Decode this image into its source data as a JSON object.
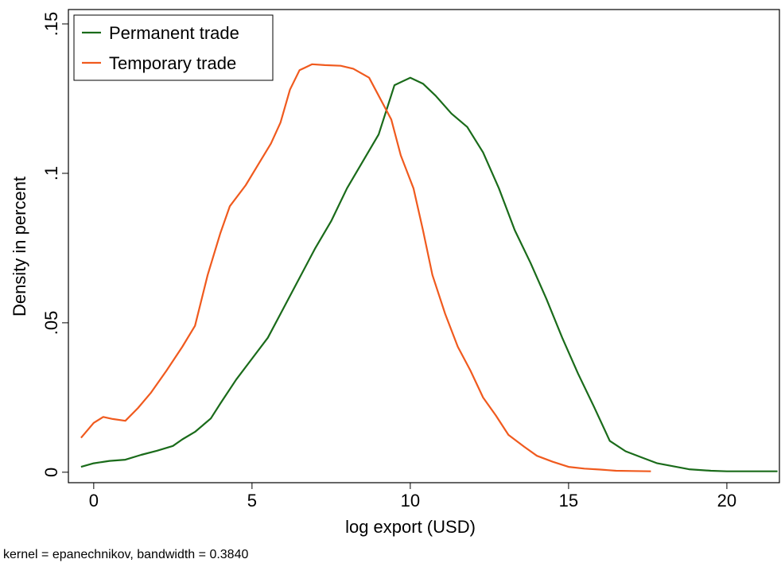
{
  "chart_data": {
    "type": "line",
    "x_label": "log export (USD)",
    "y_label": "Density in percent",
    "note": "kernel = epanechnikov, bandwidth = 0.3840",
    "xlim": [
      -0.8,
      21.66
    ],
    "ylim": [
      -0.0035,
      0.1548
    ],
    "xticks": [
      0,
      5,
      10,
      15,
      20
    ],
    "yticks": [
      {
        "value": 0,
        "label": "0"
      },
      {
        "value": 0.05,
        "label": ".05"
      },
      {
        "value": 0.1,
        "label": ".1"
      },
      {
        "value": 0.15,
        "label": ".15"
      }
    ],
    "legend": "top-left",
    "series": [
      {
        "name": "Permanent trade",
        "color": "#1a6b1a",
        "x": [
          -0.4,
          0,
          0.5,
          1,
          1.5,
          2,
          2.5,
          2.8,
          3.2,
          3.7,
          4.0,
          4.5,
          5,
          5.5,
          6,
          6.5,
          7,
          7.5,
          8,
          8.5,
          9,
          9.5,
          10,
          10.4,
          10.8,
          11.3,
          11.8,
          12.3,
          12.8,
          13.3,
          13.8,
          14.3,
          14.8,
          15.3,
          15.8,
          16.3,
          16.8,
          17.3,
          17.8,
          18.3,
          18.8,
          19.5,
          20,
          21.6
        ],
        "values": [
          0.0018,
          0.003,
          0.0038,
          0.0042,
          0.0058,
          0.0072,
          0.0088,
          0.011,
          0.0135,
          0.018,
          0.023,
          0.031,
          0.038,
          0.045,
          0.055,
          0.065,
          0.075,
          0.084,
          0.095,
          0.104,
          0.113,
          0.1295,
          0.132,
          0.13,
          0.126,
          0.12,
          0.1155,
          0.107,
          0.095,
          0.081,
          0.07,
          0.058,
          0.045,
          0.033,
          0.022,
          0.0105,
          0.007,
          0.005,
          0.003,
          0.002,
          0.001,
          0.0005,
          0.0003,
          0.0003
        ]
      },
      {
        "name": "Temporary trade",
        "color": "#f05a1e",
        "x": [
          -0.4,
          0,
          0.3,
          0.6,
          1,
          1.4,
          1.8,
          2.3,
          2.8,
          3.2,
          3.6,
          4.0,
          4.3,
          4.8,
          5.2,
          5.6,
          5.9,
          6.2,
          6.5,
          6.9,
          7.3,
          7.8,
          8.2,
          8.7,
          9.0,
          9.4,
          9.7,
          10.1,
          10.4,
          10.7,
          11.1,
          11.5,
          11.9,
          12.3,
          12.7,
          13.1,
          13.6,
          14,
          14.5,
          15,
          15.5,
          16,
          16.5,
          17,
          17.6
        ],
        "values": [
          0.0115,
          0.0165,
          0.0185,
          0.0178,
          0.0172,
          0.0215,
          0.0265,
          0.034,
          0.042,
          0.049,
          0.066,
          0.08,
          0.089,
          0.096,
          0.103,
          0.11,
          0.117,
          0.128,
          0.1345,
          0.1365,
          0.1362,
          0.136,
          0.135,
          0.132,
          0.126,
          0.118,
          0.106,
          0.095,
          0.081,
          0.066,
          0.053,
          0.042,
          0.034,
          0.025,
          0.019,
          0.0125,
          0.0085,
          0.0055,
          0.0035,
          0.0018,
          0.0012,
          0.0009,
          0.0005,
          0.0004,
          0.0003
        ]
      }
    ]
  }
}
